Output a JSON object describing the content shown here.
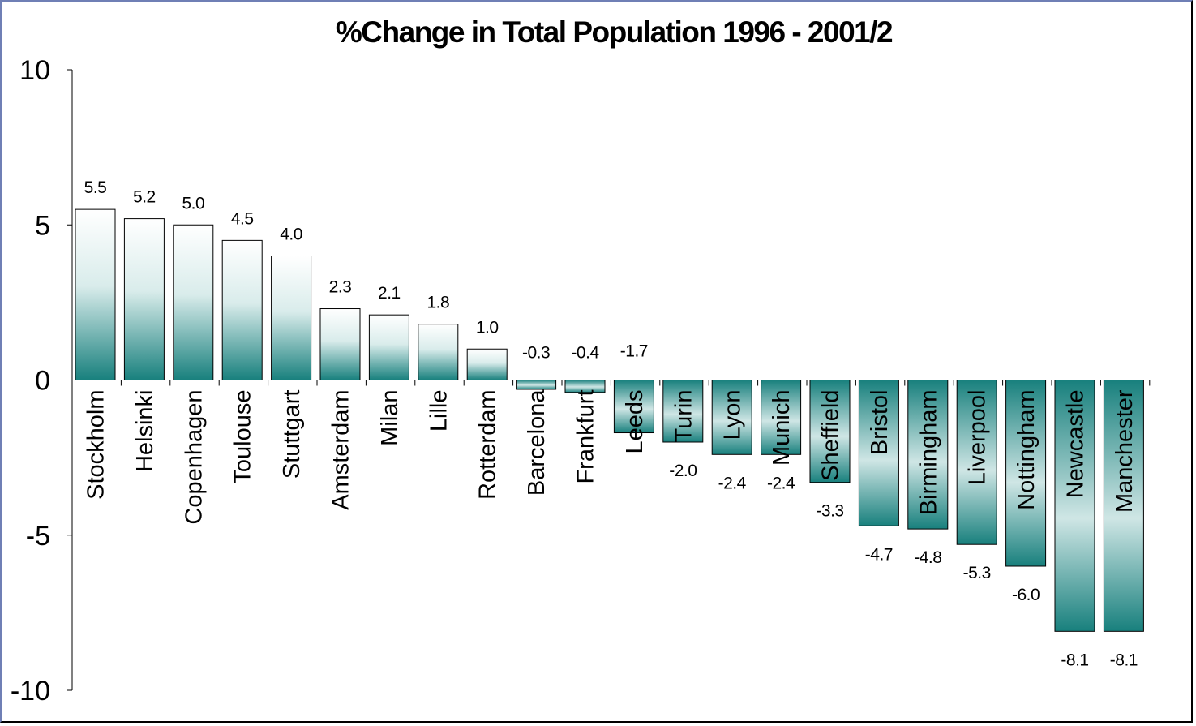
{
  "chart_data": {
    "type": "bar",
    "title": "%Change in Total Population 1996 - 2001/2",
    "xlabel": "",
    "ylabel": "",
    "ylim": [
      -10,
      10
    ],
    "yticks": [
      10,
      5,
      0,
      -5,
      -10
    ],
    "yticklabels": [
      "10",
      "5",
      "0",
      "-5",
      "-10"
    ],
    "grid": false,
    "legend": "none",
    "colors": {
      "bar_dark": "#18807d",
      "bar_light": "#ffffff",
      "outline": "#000000"
    },
    "categories": [
      "Stockholm",
      "Helsinki",
      "Copenhagen",
      "Toulouse",
      "Stuttgart",
      "Amsterdam",
      "Milan",
      "Lille",
      "Rotterdam",
      "Barcelona",
      "Frankfurt",
      "Leeds",
      "Turin",
      "Lyon",
      "Munich",
      "Sheffield",
      "Bristol",
      "Birmingham",
      "Liverpool",
      "Nottingham",
      "Newcastle",
      "Manchester"
    ],
    "values": [
      5.5,
      5.2,
      5.0,
      4.5,
      4.0,
      2.3,
      2.1,
      1.8,
      1.0,
      -0.3,
      -0.4,
      -1.7,
      -2.0,
      -2.4,
      -2.4,
      -3.3,
      -4.7,
      -4.8,
      -5.3,
      -6.0,
      -8.1,
      -8.1
    ],
    "value_labels": [
      "5.5",
      "5.2",
      "5.0",
      "4.5",
      "4.0",
      "2.3",
      "2.1",
      "1.8",
      "1.0",
      "-0.3",
      "-0.4",
      "-1.7",
      "-2.0",
      "-2.4",
      "-2.4",
      "-3.3",
      "-4.7",
      "-4.8",
      "-5.3",
      "-6.0",
      "-8.1",
      "-8.1"
    ]
  }
}
